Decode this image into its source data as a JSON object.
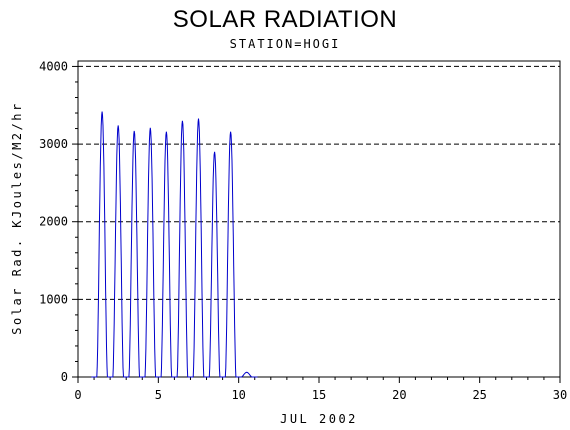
{
  "chart_data": {
    "type": "line",
    "title": "SOLAR RADIATION",
    "subtitle": "STATION=HOGI",
    "xlabel": "JUL 2002",
    "ylabel": "Solar Rad. KJoules/M2/hr",
    "xlim": [
      0,
      30
    ],
    "ylim": [
      0,
      4000
    ],
    "x_ticks": [
      "0",
      "5",
      "10",
      "15",
      "20",
      "25",
      "30"
    ],
    "y_ticks": [
      "0",
      "1000",
      "2000",
      "3000",
      "4000"
    ],
    "grid": "horizontal-dashed",
    "line_color": "#0000cc",
    "daily_peaks": [
      {
        "day": 1,
        "peak": 3420
      },
      {
        "day": 2,
        "peak": 3240
      },
      {
        "day": 3,
        "peak": 3170
      },
      {
        "day": 4,
        "peak": 3210
      },
      {
        "day": 5,
        "peak": 3160
      },
      {
        "day": 6,
        "peak": 3300
      },
      {
        "day": 7,
        "peak": 3330
      },
      {
        "day": 8,
        "peak": 2900
      },
      {
        "day": 9,
        "peak": 3160
      },
      {
        "day": 10,
        "peak": 60
      }
    ]
  }
}
